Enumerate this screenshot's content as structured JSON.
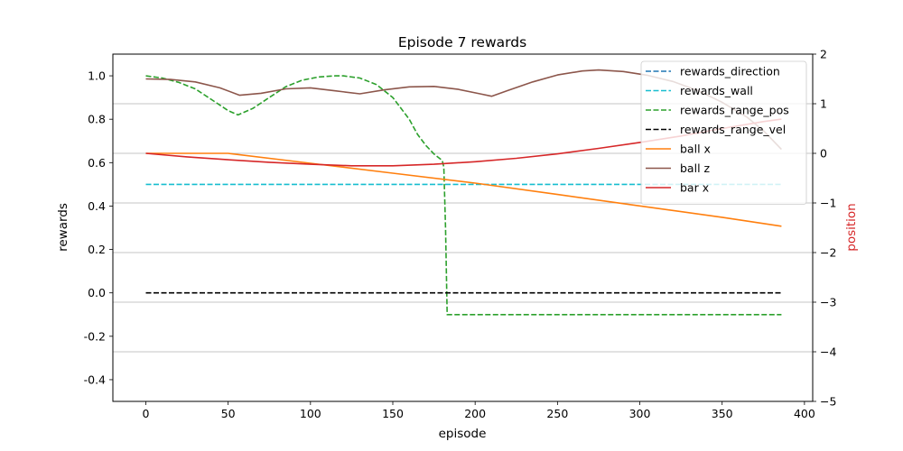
{
  "chart_data": {
    "type": "line",
    "title": "Episode 7 rewards",
    "xlabel": "episode",
    "ylabel": "rewards",
    "y2label": "position",
    "xlim": [
      -20,
      405
    ],
    "ylim": [
      -0.5,
      1.1
    ],
    "y2lim": [
      -5,
      2
    ],
    "xticks": [
      0,
      50,
      100,
      150,
      200,
      250,
      300,
      350,
      400
    ],
    "yticks": [
      -0.4,
      -0.2,
      0.0,
      0.2,
      0.4,
      0.6,
      0.8,
      1.0
    ],
    "y2ticks": [
      -5,
      -4,
      -3,
      -2,
      -1,
      0,
      1,
      2
    ],
    "grid": "right axis, horizontal only",
    "legend_position": "top-right",
    "series": [
      {
        "name": "rewards_direction",
        "axis": "left",
        "color": "#1f77b4",
        "style": "dashed",
        "x": [],
        "y": []
      },
      {
        "name": "rewards_wall",
        "axis": "left",
        "color": "#17becf",
        "style": "dashed",
        "x": [
          0,
          386
        ],
        "y": [
          0.5,
          0.5
        ]
      },
      {
        "name": "rewards_range_pos",
        "axis": "left",
        "color": "#2ca02c",
        "style": "dashed",
        "x": [
          0,
          10,
          20,
          30,
          40,
          50,
          56,
          65,
          75,
          85,
          95,
          105,
          115,
          120,
          130,
          140,
          150,
          160,
          165,
          170,
          175,
          180,
          181,
          182,
          183,
          386
        ],
        "y": [
          1.0,
          0.99,
          0.97,
          0.94,
          0.89,
          0.84,
          0.82,
          0.85,
          0.9,
          0.95,
          0.98,
          0.995,
          1.0,
          1.0,
          0.99,
          0.96,
          0.9,
          0.8,
          0.73,
          0.68,
          0.64,
          0.61,
          0.58,
          0.3,
          -0.1,
          -0.1
        ]
      },
      {
        "name": "rewards_range_vel",
        "axis": "left",
        "color": "#000000",
        "style": "dashed",
        "x": [
          0,
          386
        ],
        "y": [
          0.0,
          0.0
        ]
      },
      {
        "name": "ball x",
        "axis": "right",
        "color": "#ff7f0e",
        "style": "solid",
        "x": [
          0,
          50,
          100,
          150,
          200,
          250,
          300,
          350,
          386
        ],
        "y": [
          0,
          0,
          -0.2,
          -0.4,
          -0.6,
          -0.83,
          -1.06,
          -1.29,
          -1.47
        ]
      },
      {
        "name": "ball z",
        "axis": "right",
        "color": "#8c564b",
        "style": "solid",
        "x": [
          0,
          15,
          30,
          45,
          57,
          70,
          85,
          100,
          115,
          130,
          145,
          160,
          175,
          190,
          203,
          210,
          220,
          235,
          250,
          265,
          275,
          290,
          305,
          320,
          335,
          350,
          365,
          375,
          386
        ],
        "y": [
          1.5,
          1.49,
          1.44,
          1.32,
          1.17,
          1.21,
          1.3,
          1.32,
          1.26,
          1.2,
          1.28,
          1.34,
          1.35,
          1.29,
          1.2,
          1.15,
          1.27,
          1.44,
          1.58,
          1.66,
          1.68,
          1.65,
          1.57,
          1.45,
          1.27,
          1.03,
          0.73,
          0.46,
          0.08
        ]
      },
      {
        "name": "bar x",
        "axis": "right",
        "color": "#d62728",
        "style": "solid",
        "x": [
          0,
          25,
          50,
          75,
          100,
          125,
          150,
          175,
          200,
          225,
          250,
          275,
          300,
          325,
          350,
          375,
          386
        ],
        "y": [
          0,
          -0.07,
          -0.13,
          -0.18,
          -0.22,
          -0.25,
          -0.25,
          -0.22,
          -0.17,
          -0.1,
          -0.01,
          0.1,
          0.22,
          0.35,
          0.5,
          0.64,
          0.69
        ]
      }
    ]
  }
}
